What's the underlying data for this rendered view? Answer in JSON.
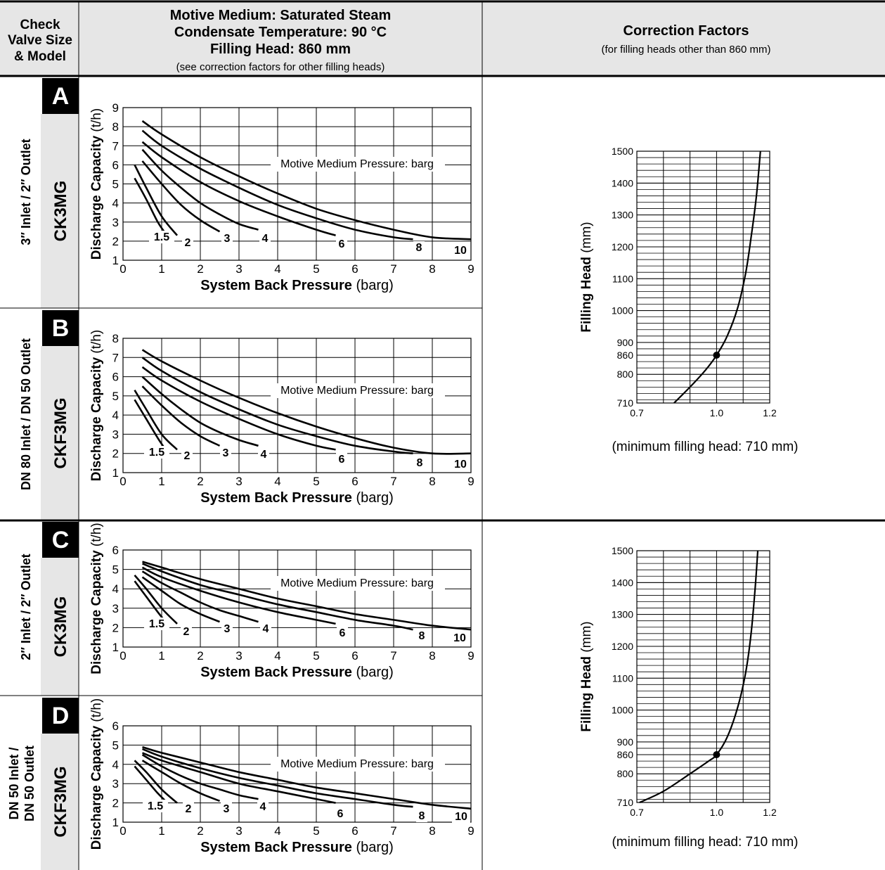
{
  "header": {
    "col1": [
      "Check",
      "Valve Size",
      "& Model"
    ],
    "col2_lines": [
      "Motive Medium: Saturated Steam",
      "Condensate Temperature: 90 °C",
      "Filling Head: 860 mm"
    ],
    "col2_note": "(see correction factors for other filling heads)",
    "col3_title": "Correction Factors",
    "col3_note": "(for filling heads other than 860 mm)"
  },
  "rows": [
    {
      "letter": "A",
      "model": "CK3MG",
      "size": "3″ Inlet / 2″ Outlet"
    },
    {
      "letter": "B",
      "model": "CKF3MG",
      "size": "DN 80 Inlet / DN 50 Outlet"
    },
    {
      "letter": "C",
      "model": "CK3MG",
      "size": "2″ Inlet / 2″ Outlet"
    },
    {
      "letter": "D",
      "model": "CKF3MG",
      "size_lines": [
        "DN 50 Inlet /",
        "DN 50 Outlet"
      ]
    }
  ],
  "chart_data": [
    {
      "type": "line",
      "id": "A",
      "xlabel_bold": "System Back Pressure",
      "xlabel_unit": "(barg)",
      "ylabel_bold": "Discharge Capacity",
      "ylabel_unit": "(t/h)",
      "xlim": [
        0,
        9
      ],
      "ylim": [
        1,
        9
      ],
      "x_ticks": [
        0,
        1,
        2,
        3,
        4,
        5,
        6,
        7,
        8,
        9
      ],
      "y_ticks": [
        1,
        2,
        3,
        4,
        5,
        6,
        7,
        8,
        9
      ],
      "grid": true,
      "annotation": "Motive Medium Pressure: barg",
      "series": [
        {
          "name": "1.5",
          "x": [
            0.3,
            0.6,
            0.9,
            1.1
          ],
          "y": [
            5.3,
            4.2,
            3.0,
            2.4
          ]
        },
        {
          "name": "2",
          "x": [
            0.3,
            0.6,
            1.0,
            1.4
          ],
          "y": [
            6.0,
            4.8,
            3.3,
            2.3
          ]
        },
        {
          "name": "3",
          "x": [
            0.5,
            1.0,
            1.5,
            2.0,
            2.5
          ],
          "y": [
            6.2,
            5.0,
            3.9,
            3.1,
            2.5
          ]
        },
        {
          "name": "4",
          "x": [
            0.5,
            1.0,
            1.5,
            2.0,
            2.5,
            3.0,
            3.5
          ],
          "y": [
            6.8,
            5.7,
            4.8,
            4.0,
            3.4,
            2.9,
            2.6
          ]
        },
        {
          "name": "6",
          "x": [
            0.5,
            1.0,
            2.0,
            3.0,
            4.0,
            5.0,
            5.5
          ],
          "y": [
            7.2,
            6.4,
            5.1,
            4.1,
            3.3,
            2.6,
            2.3
          ]
        },
        {
          "name": "8",
          "x": [
            0.5,
            1.0,
            2.0,
            3.0,
            4.0,
            5.0,
            6.0,
            7.0,
            7.5
          ],
          "y": [
            7.8,
            7.0,
            5.8,
            4.8,
            3.9,
            3.2,
            2.6,
            2.2,
            2.1
          ]
        },
        {
          "name": "10",
          "x": [
            0.5,
            1.0,
            2.0,
            3.0,
            4.0,
            5.0,
            6.0,
            7.0,
            8.0,
            9.0
          ],
          "y": [
            8.3,
            7.6,
            6.4,
            5.4,
            4.5,
            3.7,
            3.1,
            2.6,
            2.2,
            2.1
          ]
        }
      ]
    },
    {
      "type": "line",
      "id": "B",
      "xlabel_bold": "System Back Pressure",
      "xlabel_unit": "(barg)",
      "ylabel_bold": "Discharge Capacity",
      "ylabel_unit": "(t/h)",
      "xlim": [
        0,
        9
      ],
      "ylim": [
        1,
        8
      ],
      "x_ticks": [
        0,
        1,
        2,
        3,
        4,
        5,
        6,
        7,
        8,
        9
      ],
      "y_ticks": [
        1,
        2,
        3,
        4,
        5,
        6,
        7,
        8
      ],
      "grid": true,
      "annotation": "Motive Medium Pressure: barg",
      "series": [
        {
          "name": "1.5",
          "x": [
            0.3,
            0.6,
            0.9,
            1.1
          ],
          "y": [
            4.8,
            3.8,
            2.8,
            2.2
          ]
        },
        {
          "name": "2",
          "x": [
            0.3,
            0.6,
            1.0,
            1.4
          ],
          "y": [
            5.3,
            4.3,
            3.0,
            2.2
          ]
        },
        {
          "name": "3",
          "x": [
            0.5,
            1.0,
            1.5,
            2.0,
            2.5
          ],
          "y": [
            5.5,
            4.5,
            3.6,
            2.9,
            2.4
          ]
        },
        {
          "name": "4",
          "x": [
            0.5,
            1.0,
            1.5,
            2.0,
            2.5,
            3.0,
            3.5
          ],
          "y": [
            6.0,
            5.1,
            4.3,
            3.6,
            3.1,
            2.7,
            2.4
          ]
        },
        {
          "name": "6",
          "x": [
            0.5,
            1.0,
            2.0,
            3.0,
            4.0,
            5.0,
            5.5
          ],
          "y": [
            6.5,
            5.8,
            4.7,
            3.8,
            3.0,
            2.4,
            2.2
          ]
        },
        {
          "name": "8",
          "x": [
            0.5,
            1.0,
            2.0,
            3.0,
            4.0,
            5.0,
            6.0,
            7.0,
            7.5
          ],
          "y": [
            7.0,
            6.3,
            5.2,
            4.3,
            3.5,
            2.9,
            2.4,
            2.1,
            2.0
          ]
        },
        {
          "name": "10",
          "x": [
            0.5,
            1.0,
            2.0,
            3.0,
            4.0,
            5.0,
            6.0,
            7.0,
            8.0,
            9.0
          ],
          "y": [
            7.4,
            6.8,
            5.8,
            4.9,
            4.1,
            3.4,
            2.8,
            2.3,
            2.0,
            2.0
          ]
        }
      ]
    },
    {
      "type": "line",
      "id": "C",
      "xlabel_bold": "System Back Pressure",
      "xlabel_unit": "(barg)",
      "ylabel_bold": "Discharge Capacity",
      "ylabel_unit": "(t/h)",
      "xlim": [
        0,
        9
      ],
      "ylim": [
        1,
        6
      ],
      "x_ticks": [
        0,
        1,
        2,
        3,
        4,
        5,
        6,
        7,
        8,
        9
      ],
      "y_ticks": [
        1,
        2,
        3,
        4,
        5,
        6
      ],
      "grid": true,
      "annotation": "Motive Medium Pressure: barg",
      "series": [
        {
          "name": "1.5",
          "x": [
            0.3,
            0.6,
            0.9,
            1.1
          ],
          "y": [
            4.4,
            3.6,
            2.8,
            2.3
          ]
        },
        {
          "name": "2",
          "x": [
            0.3,
            0.6,
            1.0,
            1.4
          ],
          "y": [
            4.7,
            4.0,
            3.0,
            2.2
          ]
        },
        {
          "name": "3",
          "x": [
            0.5,
            1.0,
            1.5,
            2.0,
            2.5
          ],
          "y": [
            4.6,
            3.9,
            3.2,
            2.7,
            2.3
          ]
        },
        {
          "name": "4",
          "x": [
            0.5,
            1.0,
            1.5,
            2.0,
            2.5,
            3.0,
            3.5
          ],
          "y": [
            4.9,
            4.3,
            3.8,
            3.3,
            2.9,
            2.6,
            2.3
          ]
        },
        {
          "name": "6",
          "x": [
            0.5,
            1.0,
            2.0,
            3.0,
            4.0,
            5.0,
            5.5
          ],
          "y": [
            5.1,
            4.6,
            3.9,
            3.3,
            2.8,
            2.4,
            2.2
          ]
        },
        {
          "name": "8",
          "x": [
            0.5,
            1.0,
            2.0,
            3.0,
            4.0,
            5.0,
            6.0,
            7.0,
            7.5
          ],
          "y": [
            5.3,
            4.9,
            4.2,
            3.7,
            3.2,
            2.8,
            2.4,
            2.1,
            1.9
          ]
        },
        {
          "name": "10",
          "x": [
            0.5,
            1.0,
            2.0,
            3.0,
            4.0,
            5.0,
            6.0,
            7.0,
            8.0,
            9.0
          ],
          "y": [
            5.4,
            5.1,
            4.5,
            4.0,
            3.5,
            3.1,
            2.7,
            2.4,
            2.1,
            1.9
          ]
        }
      ]
    },
    {
      "type": "line",
      "id": "D",
      "xlabel_bold": "System Back Pressure",
      "xlabel_unit": "(barg)",
      "ylabel_bold": "Discharge Capacity",
      "ylabel_unit": "(t/h)",
      "xlim": [
        0,
        9
      ],
      "ylim": [
        1,
        6
      ],
      "x_ticks": [
        0,
        1,
        2,
        3,
        4,
        5,
        6,
        7,
        8,
        9
      ],
      "y_ticks": [
        1,
        2,
        3,
        4,
        5,
        6
      ],
      "grid": true,
      "annotation": "Motive Medium Pressure: barg",
      "series": [
        {
          "name": "1.5",
          "x": [
            0.3,
            0.6,
            0.9,
            1.1
          ],
          "y": [
            3.9,
            3.2,
            2.5,
            2.1
          ]
        },
        {
          "name": "2",
          "x": [
            0.3,
            0.6,
            1.0,
            1.4
          ],
          "y": [
            4.2,
            3.6,
            2.7,
            2.0
          ]
        },
        {
          "name": "3",
          "x": [
            0.5,
            1.0,
            1.5,
            2.0,
            2.5
          ],
          "y": [
            4.2,
            3.6,
            3.0,
            2.5,
            2.1
          ]
        },
        {
          "name": "4",
          "x": [
            0.5,
            1.0,
            1.5,
            2.0,
            2.5,
            3.0,
            3.5
          ],
          "y": [
            4.5,
            3.9,
            3.4,
            3.0,
            2.7,
            2.4,
            2.2
          ]
        },
        {
          "name": "6",
          "x": [
            0.5,
            1.0,
            2.0,
            3.0,
            4.0,
            5.0,
            5.5
          ],
          "y": [
            4.6,
            4.2,
            3.6,
            3.0,
            2.6,
            2.2,
            2.0
          ]
        },
        {
          "name": "8",
          "x": [
            0.5,
            1.0,
            2.0,
            3.0,
            4.0,
            5.0,
            6.0,
            7.0,
            7.5
          ],
          "y": [
            4.8,
            4.4,
            3.8,
            3.3,
            2.9,
            2.5,
            2.2,
            1.9,
            1.8
          ]
        },
        {
          "name": "10",
          "x": [
            0.5,
            1.0,
            2.0,
            3.0,
            4.0,
            5.0,
            6.0,
            7.0,
            8.0,
            9.0
          ],
          "y": [
            4.9,
            4.6,
            4.1,
            3.6,
            3.2,
            2.8,
            2.5,
            2.2,
            1.9,
            1.7
          ]
        }
      ]
    },
    {
      "type": "line",
      "id": "CF1",
      "ylabel_bold": "Filling Head",
      "ylabel_unit": "(mm)",
      "xlim": [
        0.7,
        1.2
      ],
      "ylim": [
        710,
        1500
      ],
      "x_ticks": [
        0.7,
        1.0,
        1.2
      ],
      "y_ticks": [
        710,
        800,
        860,
        900,
        1000,
        1100,
        1200,
        1300,
        1400,
        1500
      ],
      "grid": true,
      "note": "(minimum filling head: 710 mm)",
      "marker": {
        "x": 1.0,
        "y": 860
      },
      "series": [
        {
          "x": [
            0.84,
            0.9,
            0.96,
            1.0,
            1.04,
            1.08,
            1.11,
            1.13,
            1.15,
            1.165
          ],
          "y": [
            710,
            760,
            815,
            860,
            920,
            1010,
            1120,
            1230,
            1360,
            1500
          ]
        }
      ]
    },
    {
      "type": "line",
      "id": "CF2",
      "ylabel_bold": "Filling Head",
      "ylabel_unit": "(mm)",
      "xlim": [
        0.7,
        1.2
      ],
      "ylim": [
        710,
        1500
      ],
      "x_ticks": [
        0.7,
        1.0,
        1.2
      ],
      "y_ticks": [
        710,
        800,
        860,
        900,
        1000,
        1100,
        1200,
        1300,
        1400,
        1500
      ],
      "grid": true,
      "note": "(minimum filling head: 710 mm)",
      "marker": {
        "x": 1.0,
        "y": 860
      },
      "series": [
        {
          "x": [
            0.71,
            0.8,
            0.9,
            0.97,
            1.0,
            1.04,
            1.08,
            1.11,
            1.13,
            1.145,
            1.155
          ],
          "y": [
            710,
            745,
            800,
            840,
            860,
            915,
            1010,
            1120,
            1240,
            1380,
            1500
          ]
        }
      ]
    }
  ]
}
